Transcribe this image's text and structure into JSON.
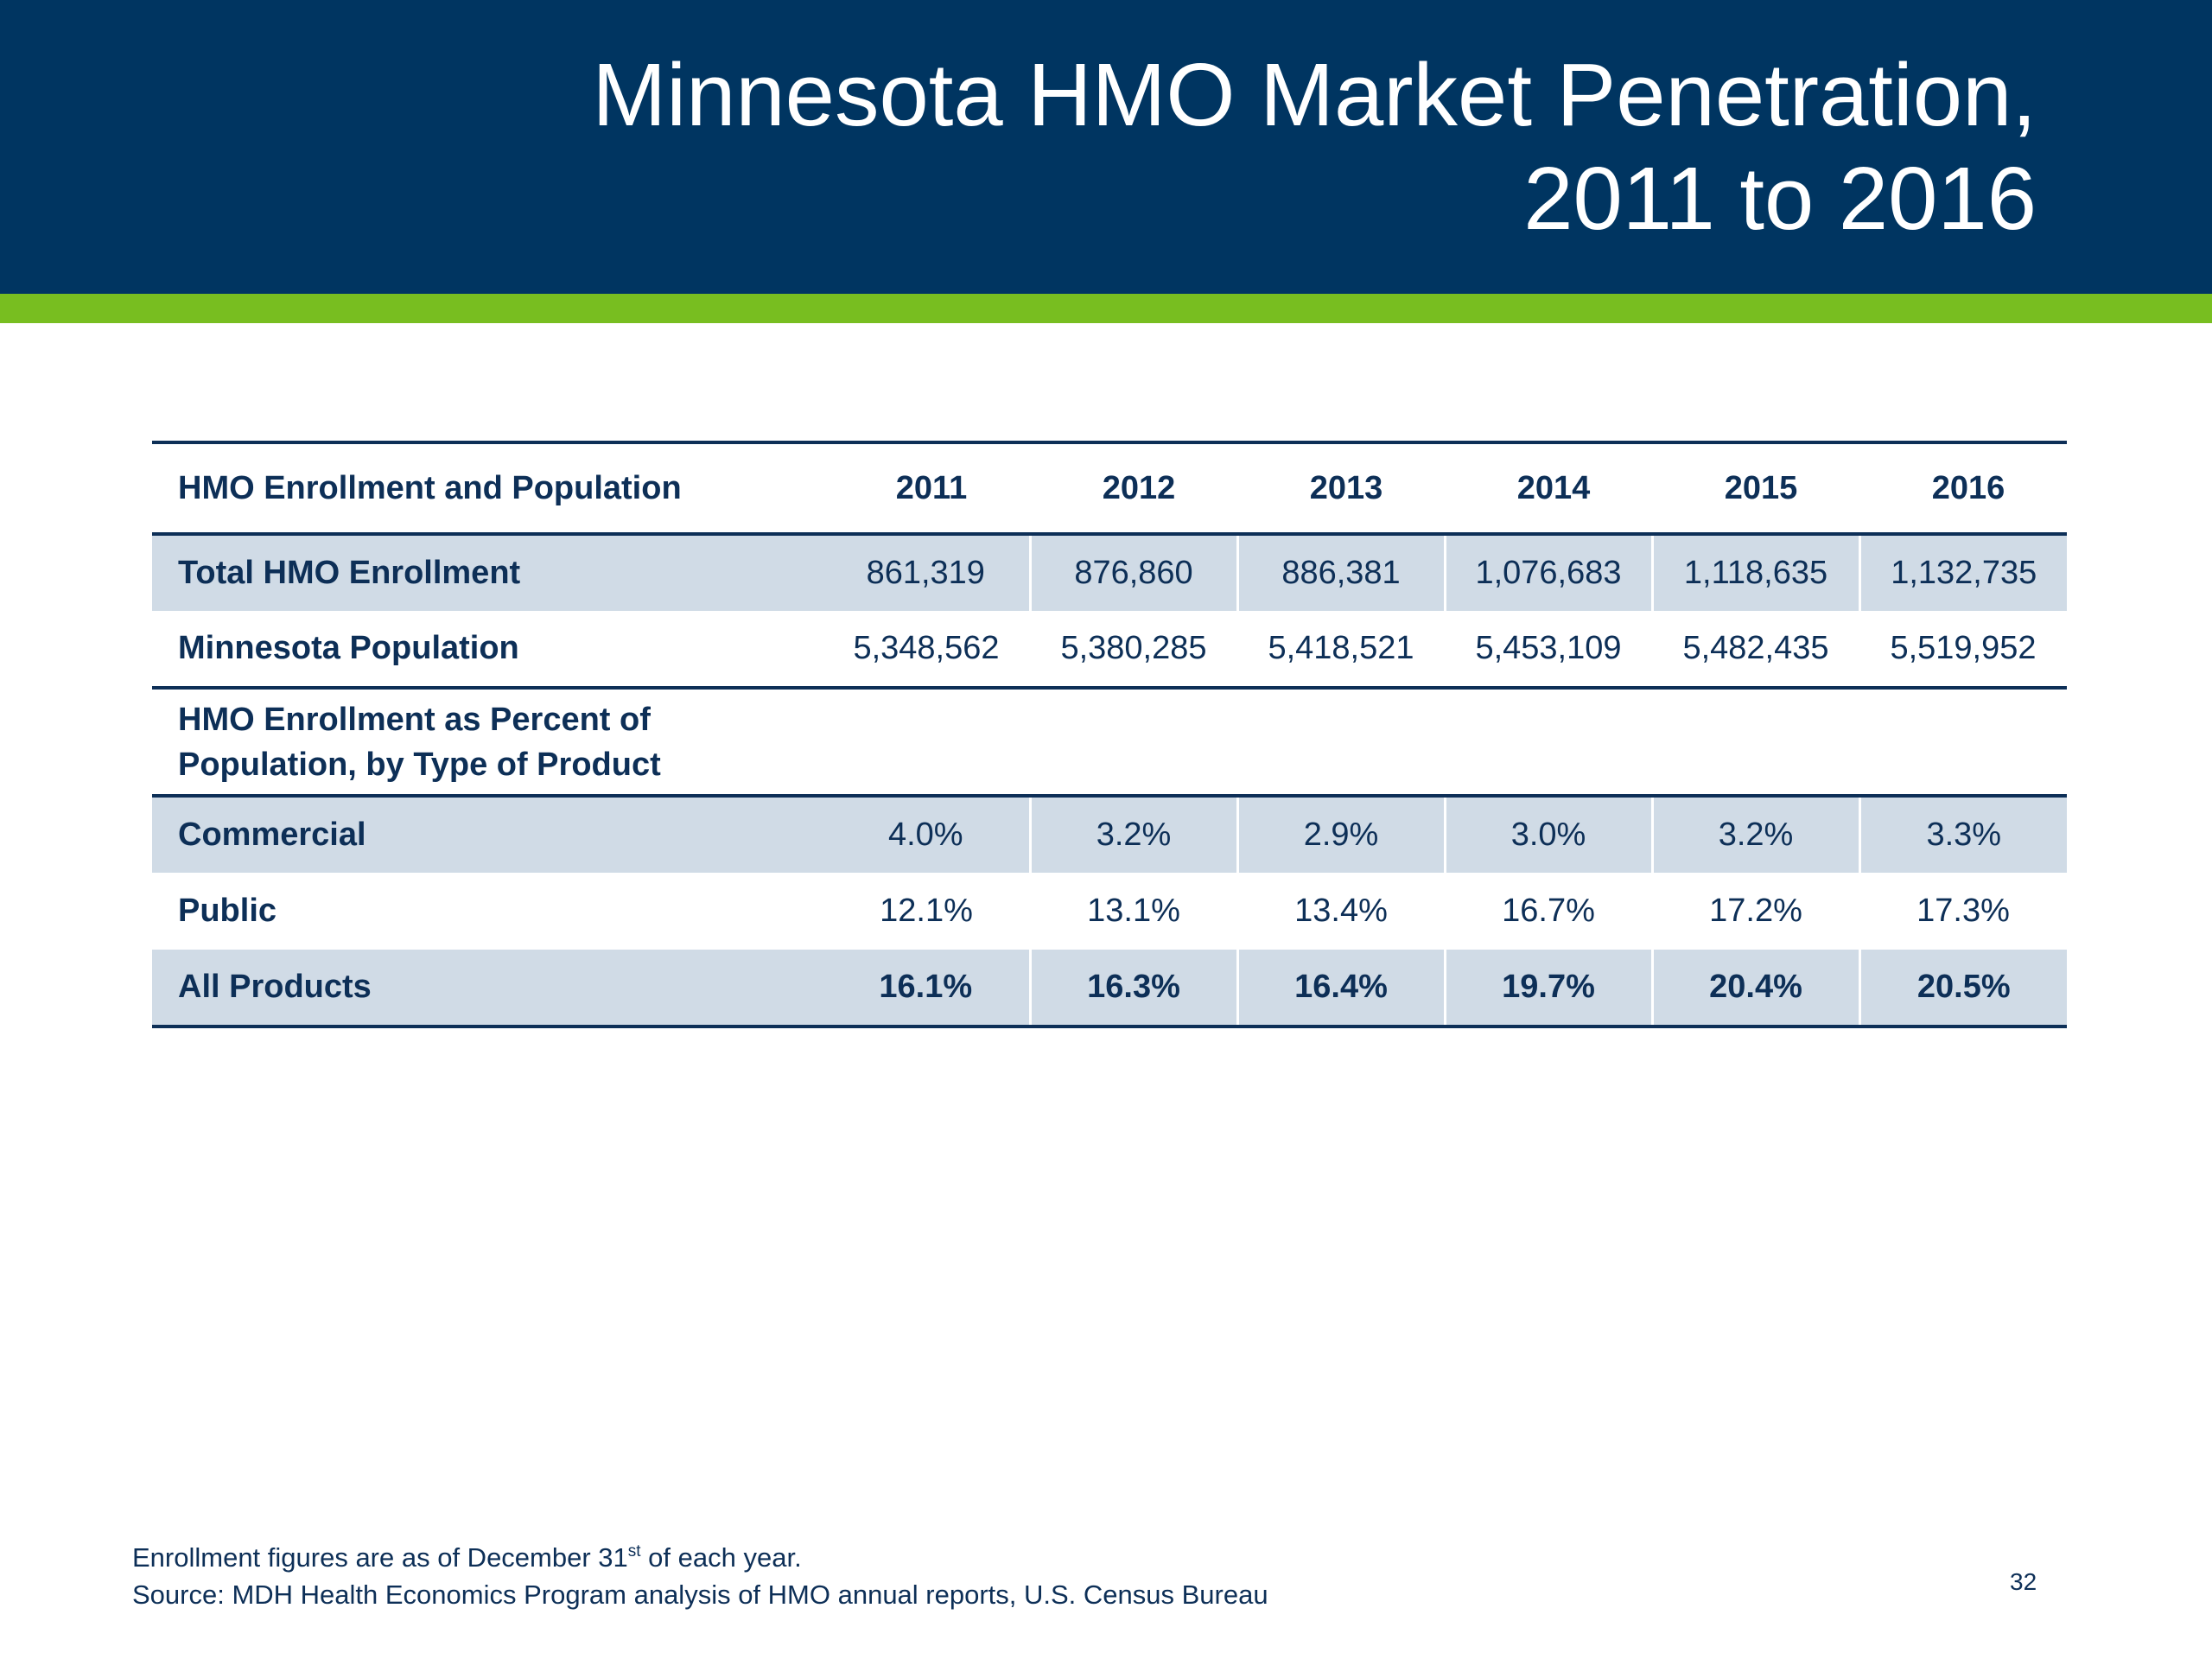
{
  "slide": {
    "title_line1": "Minnesota HMO Market Penetration,",
    "title_line2": "2011 to 2016",
    "page_number": "32"
  },
  "colors": {
    "header_band": "#003561",
    "accent_stripe": "#78be20",
    "text": "#0d2f57",
    "row_shade": "#d0dbe6"
  },
  "table": {
    "header_label": "HMO Enrollment and Population",
    "years": [
      "2011",
      "2012",
      "2013",
      "2014",
      "2015",
      "2016"
    ],
    "rows": {
      "total_enrollment": {
        "label": "Total HMO Enrollment",
        "values": [
          "861,319",
          "876,860",
          "886,381",
          "1,076,683",
          "1,118,635",
          "1,132,735"
        ]
      },
      "population": {
        "label": "Minnesota Population",
        "values": [
          "5,348,562",
          "5,380,285",
          "5,418,521",
          "5,453,109",
          "5,482,435",
          "5,519,952"
        ]
      },
      "section_label_line1": "HMO Enrollment as Percent of",
      "section_label_line2": "Population, by Type of Product",
      "commercial": {
        "label": "Commercial",
        "values": [
          "4.0%",
          "3.2%",
          "2.9%",
          "3.0%",
          "3.2%",
          "3.3%"
        ]
      },
      "public": {
        "label": "Public",
        "values": [
          "12.1%",
          "13.1%",
          "13.4%",
          "16.7%",
          "17.2%",
          "17.3%"
        ]
      },
      "all_products": {
        "label": "All Products",
        "values": [
          "16.1%",
          "16.3%",
          "16.4%",
          "19.7%",
          "20.4%",
          "20.5%"
        ]
      }
    }
  },
  "footnotes": {
    "line1_before": "Enrollment figures are as of December 31",
    "line1_sup": "st",
    "line1_after": " of each year.",
    "line2": "Source: MDH Health Economics Program analysis of HMO annual reports, U.S. Census Bureau"
  }
}
